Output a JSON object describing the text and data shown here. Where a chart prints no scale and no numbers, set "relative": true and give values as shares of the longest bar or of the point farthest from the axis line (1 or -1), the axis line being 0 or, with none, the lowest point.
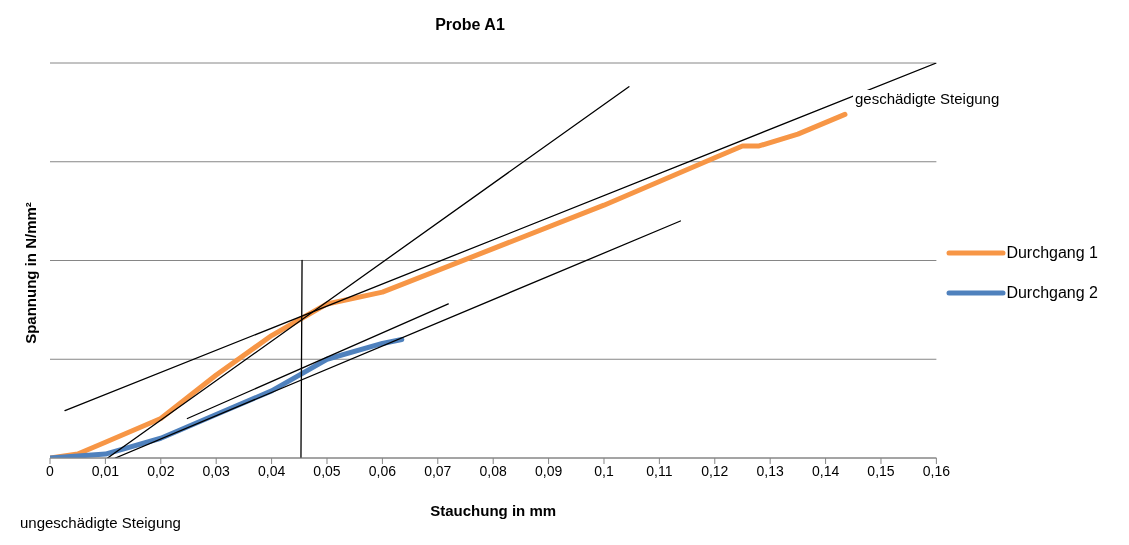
{
  "chart_data": {
    "type": "line",
    "title": "Probe A1",
    "xlabel": "Stauchung in mm",
    "ylabel": "Spannung in N/mm²",
    "relative": true,
    "grid": "y",
    "legend": "right",
    "marker": "none",
    "line_style": "solid",
    "xlim": [
      0,
      0.16
    ],
    "xticks": [
      {
        "value": 0,
        "label": "0"
      },
      {
        "value": 0.01,
        "label": "0,01"
      },
      {
        "value": 0.02,
        "label": "0,02"
      },
      {
        "value": 0.03,
        "label": "0,03"
      },
      {
        "value": 0.04,
        "label": "0,04"
      },
      {
        "value": 0.05,
        "label": "0,05"
      },
      {
        "value": 0.06,
        "label": "0,06"
      },
      {
        "value": 0.07,
        "label": "0,07"
      },
      {
        "value": 0.08,
        "label": "0,08"
      },
      {
        "value": 0.09,
        "label": "0,09"
      },
      {
        "value": 0.1,
        "label": "0,1"
      },
      {
        "value": 0.11,
        "label": "0,11"
      },
      {
        "value": 0.12,
        "label": "0,12"
      },
      {
        "value": 0.13,
        "label": "0,13"
      },
      {
        "value": 0.14,
        "label": "0,14"
      },
      {
        "value": 0.15,
        "label": "0,15"
      },
      {
        "value": 0.16,
        "label": "0,16"
      }
    ],
    "series": [
      {
        "name": "Durchgang 1",
        "color": "#f79646",
        "x": [
          0,
          0.005,
          0.01,
          0.02,
          0.03,
          0.04,
          0.045,
          0.05,
          0.06,
          0.08,
          0.1,
          0.12,
          0.125,
          0.128,
          0.135,
          0.1435
        ],
        "values": [
          0,
          0.01,
          0.04,
          0.1,
          0.21,
          0.31,
          0.35,
          0.39,
          0.42,
          0.53,
          0.64,
          0.76,
          0.79,
          0.79,
          0.82,
          0.87
        ]
      },
      {
        "name": "Durchgang 2",
        "color": "#4f81bd",
        "x": [
          0,
          0.01,
          0.02,
          0.03,
          0.04,
          0.045,
          0.05,
          0.06,
          0.0635
        ],
        "values": [
          0,
          0.01,
          0.05,
          0.11,
          0.17,
          0.21,
          0.25,
          0.29,
          0.3
        ]
      },
      {
        "color": "#000000",
        "x": [
          0.0027,
          0.16
        ],
        "values": [
          0.12,
          1
        ]
      },
      {
        "color": "#000000",
        "x": [
          0.0104,
          0.1045
        ],
        "values": [
          0,
          0.94
        ]
      },
      {
        "color": "#000000",
        "x": [
          0.0455,
          0.0453
        ],
        "values": [
          0.5,
          0
        ]
      },
      {
        "color": "#000000",
        "x": [
          0.0248,
          0.0719
        ],
        "values": [
          0.1,
          0.39
        ]
      },
      {
        "color": "#000000",
        "x": [
          0.0118,
          0.1138
        ],
        "values": [
          0,
          0.6
        ]
      }
    ],
    "annotations": [
      "geschädigte Steigung",
      "ungeschädigte Steigung"
    ]
  }
}
